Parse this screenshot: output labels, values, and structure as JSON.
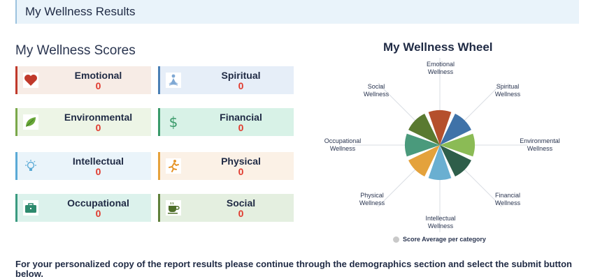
{
  "header": {
    "title": "My Wellness Results"
  },
  "scores": {
    "title": "My Wellness Scores",
    "cards": [
      {
        "name": "Emotional",
        "score": "0",
        "icon": "heart-icon",
        "bg": "#f7ece6",
        "accent": "#c0392b"
      },
      {
        "name": "Spiritual",
        "score": "0",
        "icon": "meditation-icon",
        "bg": "#e6eef8",
        "accent": "#4a7fb5"
      },
      {
        "name": "Environmental",
        "score": "0",
        "icon": "leaf-icon",
        "bg": "#edf5e6",
        "accent": "#7aa84a"
      },
      {
        "name": "Financial",
        "score": "0",
        "icon": "dollar-icon",
        "bg": "#d8f2e7",
        "accent": "#3a9a6a"
      },
      {
        "name": "Intellectual",
        "score": "0",
        "icon": "lightbulb-icon",
        "bg": "#eaf4fa",
        "accent": "#5aaad6"
      },
      {
        "name": "Physical",
        "score": "0",
        "icon": "runner-icon",
        "bg": "#fbf1e6",
        "accent": "#e6a23c"
      },
      {
        "name": "Occupational",
        "score": "0",
        "icon": "briefcase-icon",
        "bg": "#dcf2ec",
        "accent": "#3a9a80"
      },
      {
        "name": "Social",
        "score": "0",
        "icon": "coffee-cup-icon",
        "bg": "#e4efe0",
        "accent": "#5f7f3a"
      }
    ]
  },
  "wheel": {
    "title": "My Wellness Wheel",
    "legend": "Score Average per category",
    "labels": [
      {
        "line1": "Emotional",
        "line2": "Wellness"
      },
      {
        "line1": "Spiritual",
        "line2": "Wellness"
      },
      {
        "line1": "Environmental",
        "line2": "Wellness"
      },
      {
        "line1": "Financial",
        "line2": "Wellness"
      },
      {
        "line1": "Intellectual",
        "line2": "Wellness"
      },
      {
        "line1": "Physical",
        "line2": "Wellness"
      },
      {
        "line1": "Occupational",
        "line2": "Wellness"
      },
      {
        "line1": "Social",
        "line2": "Wellness"
      }
    ],
    "slice_colors": [
      "#b5502c",
      "#3f72a8",
      "#8bbb55",
      "#2e5e4a",
      "#6aafd1",
      "#e4a23c",
      "#4a9a7c",
      "#5a7a30"
    ]
  },
  "footer": {
    "text": "For your personalized copy of the report results please continue through the demographics section and select the submit button below."
  }
}
